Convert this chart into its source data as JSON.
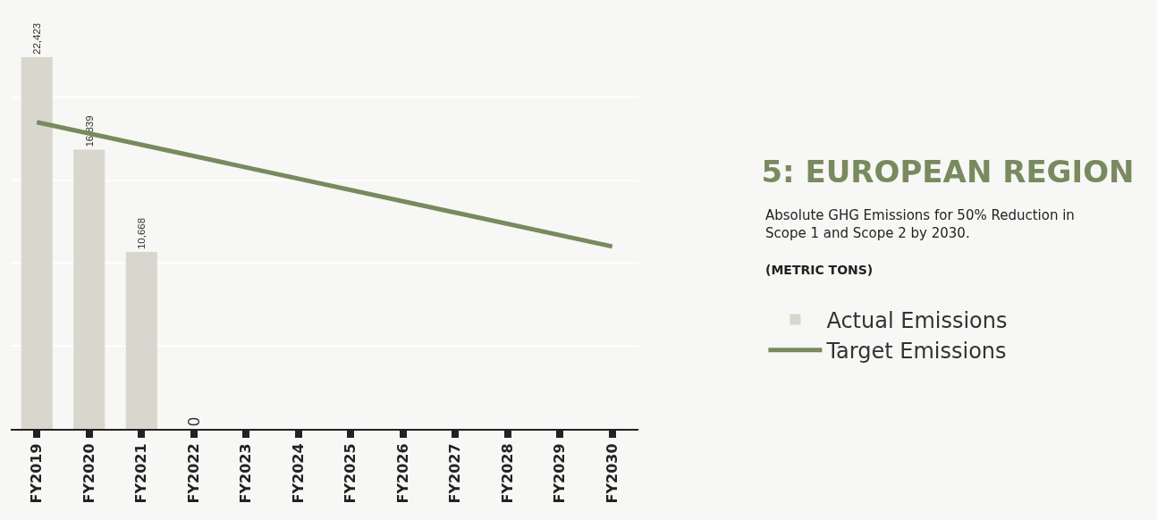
{
  "chart_data": {
    "type": "bar",
    "title": "5: EUROPEAN REGION",
    "subtitle": "Absolute GHG Emissions for 50% Reduction in Scope 1 and Scope 2 by 2030.",
    "annotations": [
      "(METRIC TONS)"
    ],
    "categories": [
      "FY2019",
      "FY2020",
      "FY2021",
      "FY2022",
      "FY2023",
      "FY2024",
      "FY2025",
      "FY2026",
      "FY2027",
      "FY2028",
      "FY2029",
      "FY2030"
    ],
    "series": [
      {
        "name": "Actual Emissions",
        "color": "#d9d6cd",
        "values": [
          22423,
          16839,
          10668,
          0,
          null,
          null,
          null,
          null,
          null,
          null,
          null,
          null
        ],
        "value_labels": [
          "22,423",
          "16,839",
          "10,668",
          "0",
          null,
          null,
          null,
          null,
          null,
          null,
          null,
          null
        ]
      },
      {
        "name": "Target Emissions",
        "type": "line",
        "color": "#788a5e",
        "x": [
          "FY2019",
          "FY2030"
        ],
        "values": [
          18500,
          11000
        ]
      }
    ],
    "grid": "y",
    "legend": "right",
    "tick_labels": "x",
    "marker": "none",
    "line_style": "solid"
  }
}
